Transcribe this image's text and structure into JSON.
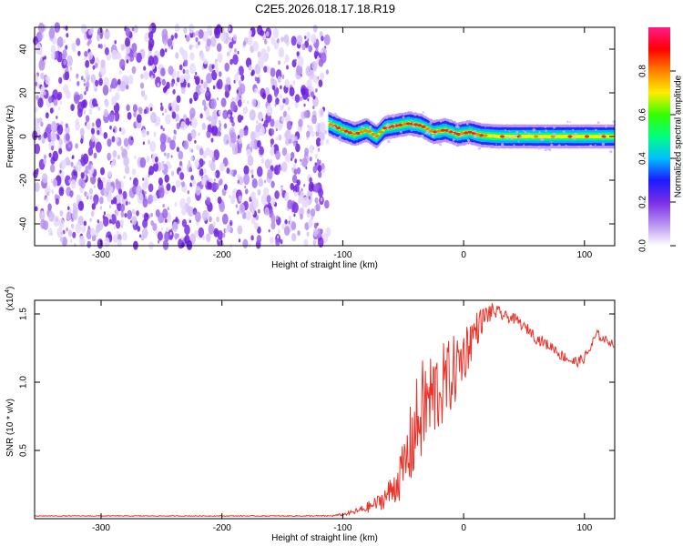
{
  "title": "C2E5.2026.018.17.18.R19",
  "chart_data": [
    {
      "type": "heatmap",
      "title": "C2E5.2026.018.17.18.R19",
      "xlabel": "Height of straight line (km)",
      "ylabel": "Frequency (Hz)",
      "xlim": [
        -355,
        125
      ],
      "ylim": [
        -50,
        50
      ],
      "x_ticks": [
        -300,
        -200,
        -100,
        0,
        100
      ],
      "y_ticks": [
        -40,
        -20,
        0,
        20,
        40
      ],
      "grid": false,
      "noise_region_x": [
        -355,
        -112
      ],
      "signal_center_line": {
        "x": [
          -112,
          -100,
          -90,
          -80,
          -72,
          -65,
          -55,
          -45,
          -35,
          -25,
          -15,
          -5,
          5,
          15,
          30,
          60,
          90,
          125
        ],
        "y": [
          6,
          3,
          1,
          3,
          0,
          4,
          5,
          6,
          5,
          2,
          3,
          1,
          2,
          0.5,
          0,
          0,
          0,
          0
        ]
      },
      "colorbar": {
        "label": "Normalized spectral amplitude",
        "min": 0.0,
        "max": 1.0,
        "ticks": [
          "0.0",
          "0.2",
          "0.4",
          "0.6",
          "0.8"
        ],
        "colors": [
          "#ffffff",
          "#b68ff0",
          "#7a2ee6",
          "#1a1aff",
          "#00bfff",
          "#00ff80",
          "#33ff00",
          "#ffee00",
          "#ff8000",
          "#ff0000",
          "#ff1a8c"
        ]
      }
    },
    {
      "type": "line",
      "xlabel": "Height of straight line (km)",
      "ylabel": "SNR (10 * v/v)",
      "y_multiplier": "(x10",
      "y_multiplier_exp": "4",
      "xlim": [
        -355,
        125
      ],
      "ylim": [
        0,
        1.6
      ],
      "x_ticks": [
        -300,
        -200,
        -100,
        0,
        100
      ],
      "y_ticks": [
        "0.5",
        "1.0",
        "1.5"
      ],
      "grid": false,
      "series": [
        {
          "color": "#e8332a",
          "x": [
            -355,
            -300,
            -200,
            -110,
            -100,
            -90,
            -80,
            -70,
            -60,
            -50,
            -45,
            -40,
            -35,
            -30,
            -25,
            -20,
            -15,
            -10,
            -5,
            0,
            5,
            10,
            15,
            20,
            25,
            30,
            35,
            40,
            45,
            50,
            55,
            60,
            65,
            70,
            75,
            80,
            85,
            90,
            95,
            100,
            105,
            110,
            115,
            120,
            125
          ],
          "y": [
            0.02,
            0.02,
            0.02,
            0.02,
            0.03,
            0.05,
            0.08,
            0.12,
            0.2,
            0.35,
            0.5,
            0.65,
            0.78,
            0.85,
            0.9,
            0.95,
            1.0,
            1.05,
            1.12,
            1.2,
            1.3,
            1.38,
            1.45,
            1.5,
            1.52,
            1.5,
            1.48,
            1.47,
            1.45,
            1.4,
            1.38,
            1.32,
            1.3,
            1.27,
            1.25,
            1.2,
            1.18,
            1.15,
            1.15,
            1.18,
            1.25,
            1.35,
            1.32,
            1.3,
            1.28
          ],
          "noise_amplitude": [
            0.003,
            0.003,
            0.003,
            0.004,
            0.01,
            0.02,
            0.04,
            0.06,
            0.12,
            0.2,
            0.3,
            0.35,
            0.38,
            0.38,
            0.36,
            0.32,
            0.3,
            0.28,
            0.25,
            0.22,
            0.18,
            0.14,
            0.1,
            0.08,
            0.06,
            0.05,
            0.04,
            0.04,
            0.04,
            0.04,
            0.04,
            0.04,
            0.04,
            0.04,
            0.04,
            0.04,
            0.04,
            0.04,
            0.04,
            0.04,
            0.04,
            0.04,
            0.03,
            0.03,
            0.03
          ]
        }
      ]
    }
  ]
}
